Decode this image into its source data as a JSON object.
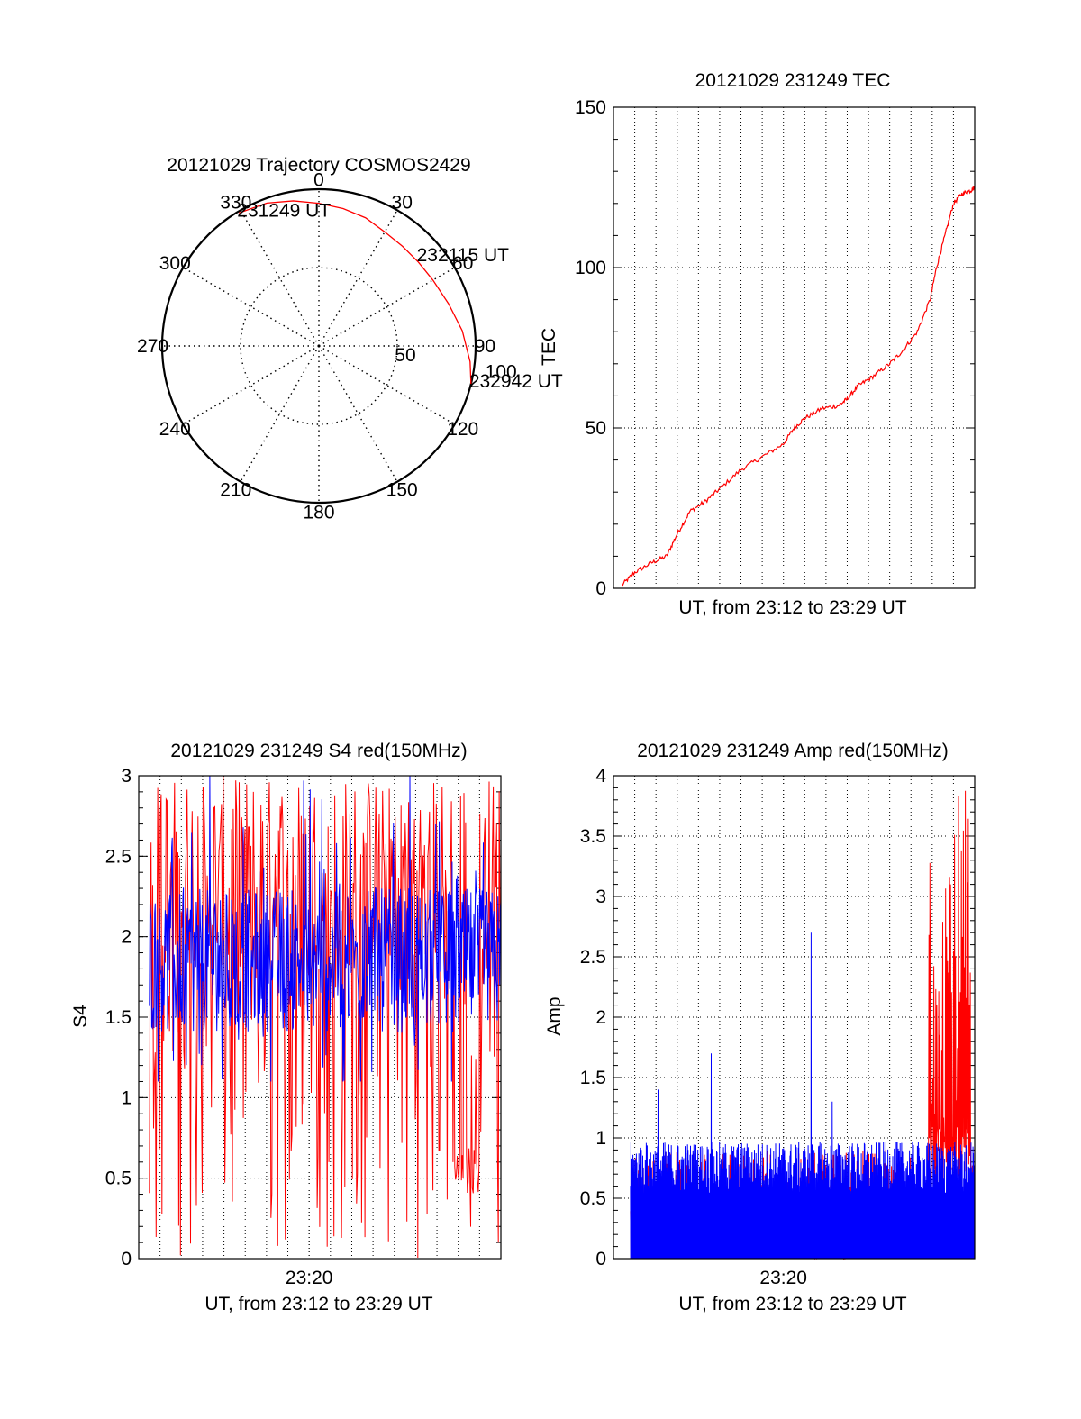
{
  "colors": {
    "red": "#ff0000",
    "blue": "#0000ff",
    "axis": "#000000"
  },
  "chart_data": [
    {
      "type": "polar",
      "title": "20121029 Trajectory COSMOS2429",
      "angle_ticks": [
        "0",
        "30",
        "60",
        "90",
        "120",
        "150",
        "180",
        "210",
        "240",
        "270",
        "300",
        "330"
      ],
      "radial_ticks": [
        "50",
        "100"
      ],
      "r_max": 100,
      "series": [
        {
          "points": [
            [
              329,
              99
            ],
            [
              340,
              97
            ],
            [
              350,
              94
            ],
            [
              0,
              91
            ],
            [
              10,
              89
            ],
            [
              20,
              87
            ],
            [
              30,
              84
            ],
            [
              40,
              83
            ],
            [
              50,
              83
            ],
            [
              60,
              84
            ],
            [
              72,
              87
            ],
            [
              84,
              92
            ],
            [
              96,
              97
            ],
            [
              104,
              100
            ]
          ]
        }
      ],
      "annotations": [
        {
          "text": "231249 UT",
          "theta": 329,
          "r": 99
        },
        {
          "text": "232115 UT",
          "theta": 50,
          "r": 83
        },
        {
          "text": "232942 UT",
          "theta": 104,
          "r": 100
        }
      ]
    },
    {
      "type": "line",
      "title": "20121029 231249 TEC",
      "xlabel": "UT, from 23:12 to 23:29 UT",
      "ylabel": "TEC",
      "xlim": [
        0,
        17
      ],
      "ylim": [
        0,
        150
      ],
      "yticks": [
        "0",
        "50",
        "100",
        "150"
      ],
      "grid": true,
      "series": [
        {
          "x": [
            0.4,
            1.0,
            1.8,
            2.5,
            3.0,
            3.6,
            4.3,
            5.0,
            6.0,
            7.0,
            8.0,
            8.5,
            9.0,
            9.8,
            10.6,
            11.0,
            11.5,
            12.2,
            13.0,
            13.6,
            14.3,
            14.9,
            15.2,
            15.6,
            16.0,
            16.4,
            16.8,
            17.0
          ],
          "y": [
            1,
            5,
            8,
            10,
            17,
            24,
            27,
            31,
            37,
            41,
            45,
            50,
            53,
            56,
            57,
            59,
            63,
            66,
            70,
            74,
            80,
            90,
            100,
            110,
            120,
            123,
            124,
            125
          ]
        }
      ]
    },
    {
      "type": "line",
      "title": "20121029 231249 S4 red(150MHz)",
      "xlabel": "UT, from 23:12 to 23:29 UT",
      "ylabel": "S4",
      "xticks": [
        "23:20"
      ],
      "xtick_pos": [
        8
      ],
      "xlim": [
        0,
        17
      ],
      "ylim": [
        0,
        3
      ],
      "yticks": [
        "0",
        "0.5",
        "1",
        "1.5",
        "2",
        "2.5",
        "3"
      ],
      "grid": true,
      "series": [
        {
          "name": "",
          "color": "red",
          "x_range": [
            0,
            17
          ],
          "band": [
            0,
            3
          ],
          "dip": {
            "x": [
              14.8,
              16.0
            ],
            "low": 0.4
          }
        },
        {
          "name": "",
          "color": "blue",
          "x_range": [
            0,
            17
          ],
          "band": [
            1.3,
            2.9
          ]
        }
      ]
    },
    {
      "type": "line",
      "title": "20121029 231249 Amp red(150MHz)",
      "xlabel": "UT, from 23:12 to 23:29 UT",
      "ylabel": "Amp",
      "xticks": [
        "23:20"
      ],
      "xtick_pos": [
        8
      ],
      "xlim": [
        0,
        17
      ],
      "ylim": [
        0,
        4
      ],
      "yticks": [
        "0",
        "0.5",
        "1",
        "1.5",
        "2",
        "2.5",
        "3",
        "3.5",
        "4"
      ],
      "grid": true,
      "series": [
        {
          "name": "",
          "color": "red",
          "x_range": [
            0,
            17
          ],
          "burst": {
            "x": [
              14.8,
              16.8
            ],
            "peak": 3.9
          }
        },
        {
          "name": "",
          "color": "blue",
          "x_range": [
            0,
            17
          ],
          "base": 0.7,
          "spikes": [
            [
              4.6,
              1.7
            ],
            [
              9.3,
              2.7
            ],
            [
              2.1,
              1.4
            ],
            [
              10.3,
              1.3
            ]
          ]
        }
      ]
    }
  ]
}
